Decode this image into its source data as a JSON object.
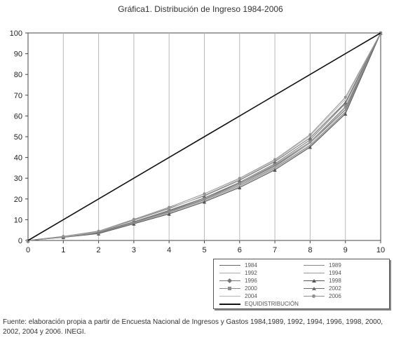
{
  "chart_data": {
    "type": "line",
    "title": "Gráfica1. Distribución de Ingreso 1984-2006",
    "xlabel": "",
    "ylabel": "",
    "x": [
      0,
      1,
      2,
      3,
      4,
      5,
      6,
      7,
      8,
      9,
      10
    ],
    "xlim": [
      0,
      10
    ],
    "ylim": [
      0,
      100
    ],
    "yticks": [
      0,
      10,
      20,
      30,
      40,
      50,
      60,
      70,
      80,
      90,
      100
    ],
    "xticks": [
      0,
      1,
      2,
      3,
      4,
      5,
      6,
      7,
      8,
      9,
      10
    ],
    "grid": "vertical",
    "legend_position": "bottom-right",
    "series": [
      {
        "name": "1984",
        "values": [
          0,
          1.7,
          4.0,
          9.0,
          14.5,
          20.5,
          27.5,
          36.0,
          47.0,
          63.0,
          100
        ],
        "color": "#666666",
        "marker": "none"
      },
      {
        "name": "1989",
        "values": [
          0,
          1.6,
          3.5,
          8.5,
          13.5,
          19.5,
          26.5,
          35.0,
          46.0,
          62.0,
          100
        ],
        "color": "#888888",
        "marker": "none"
      },
      {
        "name": "1992",
        "values": [
          0,
          1.5,
          3.4,
          8.2,
          13.0,
          19.0,
          26.0,
          34.5,
          45.5,
          61.5,
          100
        ],
        "color": "#aaaaaa",
        "marker": "none"
      },
      {
        "name": "1994",
        "values": [
          0,
          1.6,
          3.5,
          8.5,
          13.8,
          19.8,
          27.0,
          35.5,
          47.0,
          64.0,
          100
        ],
        "color": "#999999",
        "marker": "none"
      },
      {
        "name": "1996",
        "values": [
          0,
          1.7,
          3.8,
          8.8,
          14.2,
          20.5,
          28.0,
          37.0,
          48.5,
          66.0,
          100
        ],
        "color": "#777777",
        "marker": "diamond"
      },
      {
        "name": "1998",
        "values": [
          0,
          1.5,
          3.3,
          8.0,
          12.8,
          18.6,
          25.5,
          34.0,
          45.0,
          61.0,
          100
        ],
        "color": "#555555",
        "marker": "triangle"
      },
      {
        "name": "2000",
        "values": [
          0,
          1.6,
          3.6,
          8.7,
          14.0,
          20.0,
          27.5,
          36.5,
          47.5,
          64.5,
          100
        ],
        "color": "#8c8c8c",
        "marker": "square"
      },
      {
        "name": "2002",
        "values": [
          0,
          1.9,
          4.3,
          9.8,
          15.5,
          21.5,
          29.0,
          38.0,
          49.5,
          66.5,
          100
        ],
        "color": "#6e6e6e",
        "marker": "triangle"
      },
      {
        "name": "2004",
        "values": [
          0,
          1.8,
          4.2,
          9.6,
          15.2,
          21.8,
          29.5,
          38.5,
          50.5,
          68.0,
          100
        ],
        "color": "#b5b5b5",
        "marker": "none"
      },
      {
        "name": "2006",
        "values": [
          0,
          2.0,
          4.5,
          10.2,
          16.0,
          22.5,
          30.0,
          39.0,
          51.0,
          69.0,
          100
        ],
        "color": "#909090",
        "marker": "circle"
      },
      {
        "name": "EQUIDISTRIBUCIÓN",
        "values": [
          0,
          10,
          20,
          30,
          40,
          50,
          60,
          70,
          80,
          90,
          100
        ],
        "color": "#111111",
        "marker": "none"
      }
    ]
  },
  "source_note": "Fuente: elaboración propia a partir de Encuesta Nacional de Ingresos y Gastos 1984,1989, 1992, 1994, 1996, 1998, 2000, 2002, 2004 y 2006. INEGI."
}
